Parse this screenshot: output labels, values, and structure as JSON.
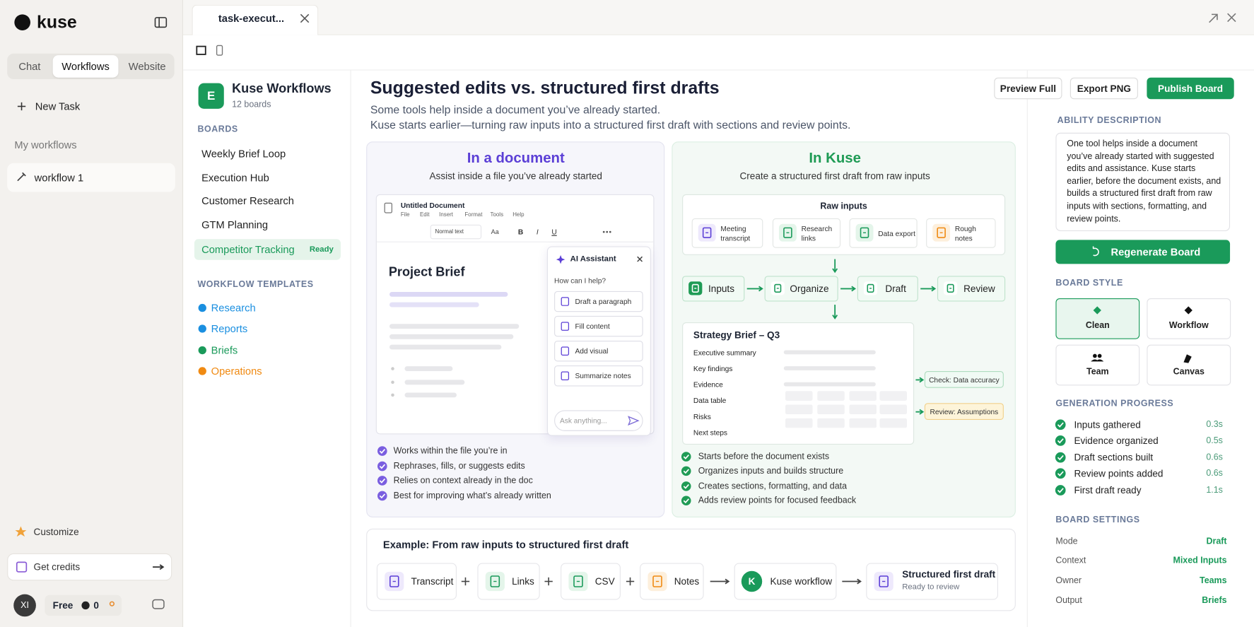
{
  "sidebar": {
    "brand": "kuse",
    "tabs": [
      "Chat",
      "Workflows",
      "Website"
    ],
    "new_task": "New Task",
    "section": "My workflows",
    "workflows": [
      "workflow 1"
    ],
    "customize": "Customize",
    "credits": "Get credits",
    "user": {
      "initials": "XI",
      "plan": "Free",
      "credits": "0"
    }
  },
  "tab": {
    "title": "task-execut..."
  },
  "workspace": {
    "initial": "E",
    "name": "Kuse Workflows",
    "count": "12 boards",
    "boards_heading": "BOARDS",
    "boards": [
      "Weekly Brief Loop",
      "Execution Hub",
      "Customer Research",
      "GTM Planning",
      "Competitor Tracking"
    ],
    "active_badge": "Ready",
    "templates_heading": "WORKFLOW TEMPLATES",
    "templates": [
      {
        "name": "Research",
        "color": "#1a8fe0"
      },
      {
        "name": "Reports",
        "color": "#1a8fe0"
      },
      {
        "name": "Briefs",
        "color": "#1a9a5a"
      },
      {
        "name": "Operations",
        "color": "#f08a12"
      }
    ]
  },
  "board": {
    "title": "Suggested edits vs. structured first drafts",
    "subtitle": [
      "Some tools help inside a document you’ve already started.",
      "Kuse starts earlier—turning raw inputs into a structured first draft with sections and review points."
    ],
    "buttons": [
      "Preview Full",
      "Export PNG",
      "Publish Board"
    ],
    "left": {
      "heading": "In a document",
      "subheading": "Assist inside a file you’ve already started",
      "doc": {
        "title": "Untitled Document",
        "menu": [
          "File",
          "Edit",
          "Insert",
          "Format",
          "Tools",
          "Help"
        ],
        "toolbar": [
          "Normal text",
          "Aa",
          "B",
          "I",
          "U"
        ],
        "heading": "Project Brief"
      },
      "assistant": {
        "title": "AI Assistant",
        "prompt": "How can I help?",
        "actions": [
          "Draft a paragraph",
          "Fill content",
          "Add visual",
          "Summarize notes"
        ],
        "placeholder": "Ask anything..."
      },
      "points": [
        "Works within the file you’re in",
        "Rephrases, fills, or suggests edits",
        "Relies on context already in the doc",
        "Best for improving what’s already written"
      ]
    },
    "right": {
      "heading": "In Kuse",
      "subheading": "Create a structured first draft from raw inputs",
      "raw_heading": "Raw inputs",
      "raw": [
        "Meeting transcript",
        "Research links",
        "Data export",
        "Rough notes"
      ],
      "flow": [
        "Inputs",
        "Organize",
        "Draft",
        "Review"
      ],
      "brief": {
        "title": "Strategy Brief – Q3",
        "rows": [
          "Executive summary",
          "Key findings",
          "Evidence",
          "Data table",
          "Risks",
          "Next steps"
        ]
      },
      "checks": [
        "Check: Data accuracy",
        "Review: Assumptions"
      ],
      "points": [
        "Starts before the document exists",
        "Organizes inputs and builds structure",
        "Creates sections, formatting, and data",
        "Adds review points for focused feedback"
      ]
    },
    "example": {
      "title": "Example: From raw inputs to structured first draft",
      "inputs": [
        "Transcript",
        "Links",
        "CSV",
        "Notes"
      ],
      "workflow_initial": "K",
      "workflow": "Kuse workflow",
      "output": "Structured first draft",
      "output_status": "Ready to review"
    }
  },
  "panel": {
    "ability_heading": "ABILITY DESCRIPTION",
    "ability": "One tool helps inside a document you’ve already started with suggested edits and assistance. Kuse starts earlier, before the document exists, and builds a structured first draft from raw inputs with sections, formatting, and review points.",
    "regenerate": "Regenerate Board",
    "style_heading": "BOARD STYLE",
    "styles": [
      "Clean",
      "Workflow",
      "Team",
      "Canvas"
    ],
    "progress_heading": "GENERATION PROGRESS",
    "progress": [
      {
        "step": "Inputs gathered",
        "time": "0.3s"
      },
      {
        "step": "Evidence organized",
        "time": "0.5s"
      },
      {
        "step": "Draft sections built",
        "time": "0.6s"
      },
      {
        "step": "Review points added",
        "time": "0.6s"
      },
      {
        "step": "First draft ready",
        "time": "1.1s"
      }
    ],
    "settings_heading": "BOARD SETTINGS",
    "settings": [
      {
        "key": "Mode",
        "value": "Draft"
      },
      {
        "key": "Context",
        "value": "Mixed Inputs"
      },
      {
        "key": "Owner",
        "value": "Teams"
      },
      {
        "key": "Output",
        "value": "Briefs"
      }
    ]
  }
}
